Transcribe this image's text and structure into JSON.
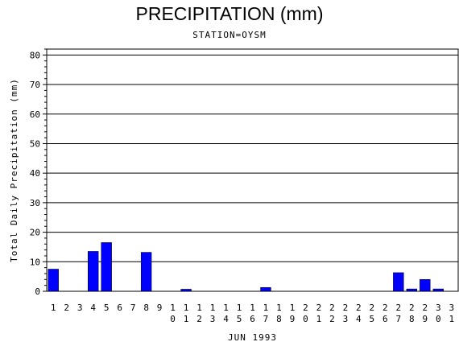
{
  "chart_data": {
    "type": "bar",
    "title": "PRECIPITATION (mm)",
    "subtitle": "STATION=OYSM",
    "xlabel": "JUN 1993",
    "ylabel": "Total Daily Precipitation (mm)",
    "ylim": [
      0,
      82
    ],
    "yticks": [
      0,
      10,
      20,
      30,
      40,
      50,
      60,
      70,
      80
    ],
    "grid": true,
    "bar_color": "#0000ff",
    "categories": [
      "1",
      "2",
      "3",
      "4",
      "5",
      "6",
      "7",
      "8",
      "9",
      "10",
      "11",
      "12",
      "13",
      "14",
      "15",
      "16",
      "17",
      "18",
      "19",
      "20",
      "21",
      "22",
      "23",
      "24",
      "25",
      "26",
      "27",
      "28",
      "29",
      "30",
      "31"
    ],
    "values": [
      7.5,
      0,
      0,
      13.5,
      16.5,
      0,
      0,
      13.2,
      0,
      0,
      0.7,
      0,
      0,
      0,
      0,
      0,
      1.3,
      0,
      0,
      0,
      0,
      0,
      0,
      0,
      0,
      0,
      6.3,
      0.8,
      4.0,
      0.8,
      0
    ]
  }
}
